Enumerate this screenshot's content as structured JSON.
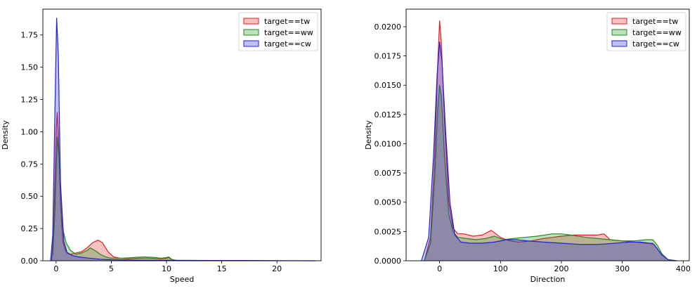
{
  "chart_data": [
    {
      "type": "area",
      "xlabel": "Speed",
      "ylabel": "Density",
      "xlim": [
        -1.2,
        24.0
      ],
      "ylim": [
        0,
        1.95
      ],
      "xticks": [
        0,
        5,
        10,
        15,
        20
      ],
      "yticks": [
        0.0,
        0.25,
        0.5,
        0.75,
        1.0,
        1.25,
        1.5,
        1.75
      ],
      "ytick_decimals": 2,
      "legend_position": "top-right",
      "series": [
        {
          "name": "target==tw",
          "color": "#e02020",
          "x": [
            -0.4,
            -0.2,
            0.0,
            0.1,
            0.2,
            0.4,
            0.6,
            0.9,
            1.3,
            1.8,
            2.3,
            2.8,
            3.3,
            3.8,
            4.2,
            4.7,
            5.2,
            5.8,
            6.5,
            7.5,
            8.5,
            9.5,
            10.0,
            10.2,
            10.5,
            11.0
          ],
          "y": [
            0.0,
            0.3,
            1.0,
            1.15,
            1.0,
            0.45,
            0.15,
            0.07,
            0.05,
            0.06,
            0.07,
            0.1,
            0.14,
            0.16,
            0.14,
            0.07,
            0.03,
            0.02,
            0.015,
            0.02,
            0.02,
            0.015,
            0.02,
            0.025,
            0.01,
            0.0
          ]
        },
        {
          "name": "target==ww",
          "color": "#1e8c1e",
          "x": [
            -0.5,
            -0.3,
            -0.1,
            0.1,
            0.3,
            0.6,
            0.9,
            1.3,
            1.8,
            2.3,
            2.8,
            3.1,
            3.5,
            4.0,
            4.5,
            5.0,
            6.0,
            7.0,
            8.0,
            9.0,
            9.5,
            10.0,
            10.2,
            10.5,
            11.0
          ],
          "y": [
            0.0,
            0.05,
            0.4,
            0.96,
            0.75,
            0.25,
            0.14,
            0.08,
            0.05,
            0.06,
            0.08,
            0.1,
            0.08,
            0.05,
            0.03,
            0.02,
            0.02,
            0.025,
            0.03,
            0.025,
            0.02,
            0.025,
            0.03,
            0.01,
            0.0
          ]
        },
        {
          "name": "target==cw",
          "color": "#2020e0",
          "x": [
            -0.5,
            -0.3,
            -0.1,
            0.05,
            0.2,
            0.4,
            0.7,
            1.0,
            1.5,
            2.0,
            3.0,
            4.0,
            5.0,
            7.0,
            9.0,
            11.0,
            14.0,
            17.0,
            20.0,
            23.5
          ],
          "y": [
            0.0,
            0.2,
            1.2,
            1.88,
            1.6,
            0.6,
            0.15,
            0.06,
            0.04,
            0.03,
            0.02,
            0.012,
            0.008,
            0.005,
            0.004,
            0.003,
            0.002,
            0.002,
            0.001,
            0.0
          ]
        }
      ]
    },
    {
      "type": "area",
      "xlabel": "Direction",
      "ylabel": "Density",
      "xlim": [
        -55,
        410
      ],
      "ylim": [
        0,
        0.0215
      ],
      "xticks": [
        0,
        100,
        200,
        300,
        400
      ],
      "yticks": [
        0.0,
        0.0025,
        0.005,
        0.0075,
        0.01,
        0.0125,
        0.015,
        0.0175,
        0.02
      ],
      "ytick_decimals": 4,
      "legend_position": "top-right",
      "series": [
        {
          "name": "target==tw",
          "color": "#e02020",
          "x": [
            -25,
            -15,
            -8,
            -3,
            0,
            3,
            8,
            15,
            22,
            30,
            40,
            55,
            70,
            85,
            100,
            115,
            130,
            150,
            170,
            185,
            200,
            220,
            240,
            260,
            270,
            280,
            300,
            320,
            340,
            350,
            358,
            365,
            375,
            385
          ],
          "y": [
            0.0,
            0.002,
            0.009,
            0.017,
            0.0205,
            0.0185,
            0.012,
            0.005,
            0.0028,
            0.0023,
            0.0023,
            0.0021,
            0.0022,
            0.0026,
            0.002,
            0.0017,
            0.0016,
            0.0017,
            0.0019,
            0.002,
            0.0021,
            0.0022,
            0.0022,
            0.0022,
            0.0023,
            0.0018,
            0.0017,
            0.0016,
            0.0015,
            0.0015,
            0.001,
            0.0005,
            0.0001,
            0.0
          ]
        },
        {
          "name": "target==ww",
          "color": "#1e8c1e",
          "x": [
            -25,
            -15,
            -8,
            -3,
            0,
            3,
            8,
            15,
            22,
            30,
            45,
            60,
            75,
            90,
            105,
            120,
            140,
            160,
            185,
            200,
            215,
            240,
            260,
            280,
            300,
            320,
            340,
            350,
            358,
            365,
            375,
            385
          ],
          "y": [
            0.0,
            0.0015,
            0.007,
            0.013,
            0.015,
            0.014,
            0.009,
            0.004,
            0.0025,
            0.002,
            0.0019,
            0.0018,
            0.0019,
            0.0021,
            0.0018,
            0.0019,
            0.002,
            0.0021,
            0.0023,
            0.0023,
            0.0022,
            0.002,
            0.0019,
            0.0018,
            0.0017,
            0.0017,
            0.0018,
            0.0018,
            0.0013,
            0.0006,
            0.0001,
            0.0
          ]
        },
        {
          "name": "target==cw",
          "color": "#2020e0",
          "x": [
            -30,
            -18,
            -10,
            -4,
            0,
            4,
            10,
            17,
            25,
            35,
            50,
            70,
            90,
            110,
            125,
            145,
            170,
            200,
            230,
            260,
            290,
            310,
            330,
            345,
            352,
            358,
            365,
            375,
            390
          ],
          "y": [
            0.0,
            0.002,
            0.009,
            0.016,
            0.0187,
            0.017,
            0.011,
            0.005,
            0.0022,
            0.0016,
            0.0015,
            0.0015,
            0.0016,
            0.0018,
            0.0018,
            0.0017,
            0.0016,
            0.0015,
            0.0014,
            0.0014,
            0.0015,
            0.0016,
            0.0016,
            0.0015,
            0.0014,
            0.001,
            0.0005,
            0.0001,
            0.0
          ]
        }
      ]
    }
  ]
}
